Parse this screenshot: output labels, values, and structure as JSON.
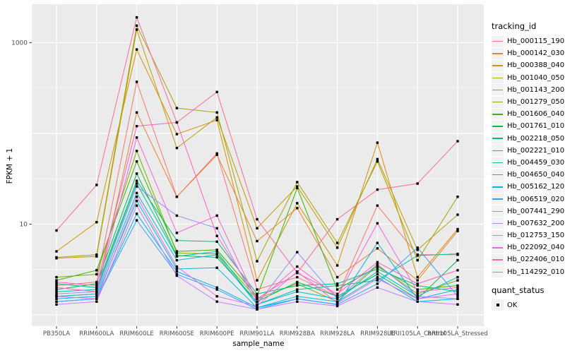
{
  "chart_data": {
    "type": "line",
    "title": "",
    "xlabel": "sample_name",
    "ylabel": "FPKM + 1",
    "x_categories": [
      "PB350LA",
      "RRIM600LA",
      "RRIM600LE",
      "RRIM600SE",
      "RRIM600PE",
      "RRIM901LA",
      "RRIM928BA",
      "RRIM928LA",
      "RRIM928LE",
      "RRII105LA_Control",
      "RRII105LA_Stressed"
    ],
    "y_scale": "log10",
    "y_domain": [
      0.75,
      2650
    ],
    "y_ticks": [
      {
        "value": 10,
        "label": "10"
      },
      {
        "value": 1000,
        "label": "1000"
      }
    ],
    "y_gridlines_major": [
      1,
      10,
      100,
      1000
    ],
    "y_gridlines_minor": [
      3.162,
      31.62,
      316.2
    ],
    "grid_on": true,
    "panel_bg": "#EBEBEB",
    "grid_color": "#FFFFFF",
    "axis_text_color": "#4D4D4D",
    "tick_color": "#333333",
    "point": {
      "color": "#000000",
      "shape": "square",
      "size": 3.4
    },
    "legend": {
      "position": "right",
      "tracking_title": "tracking_id",
      "quant_title": "quant_status",
      "quant_items": [
        {
          "label": "OK",
          "marker": "point",
          "color": "#000000"
        }
      ]
    },
    "series": [
      {
        "name": "Hb_000115_190",
        "color": "#F8766D",
        "values": [
          2.1,
          2.3,
          370,
          20,
          60,
          1.9,
          2.6,
          1.6,
          16,
          4.6,
          4.6
        ]
      },
      {
        "name": "Hb_000142_030",
        "color": "#EA8331",
        "values": [
          1.6,
          1.7,
          170,
          20,
          58,
          6.5,
          15,
          2.6,
          5.4,
          2.4,
          8.4
        ]
      },
      {
        "name": "Hb_000388_040",
        "color": "#D89000",
        "values": [
          5.0,
          10.5,
          840,
          98,
          140,
          2.4,
          17,
          3.5,
          79,
          2.6,
          8.8
        ]
      },
      {
        "name": "Hb_001040_050",
        "color": "#C09B00",
        "values": [
          4.2,
          4.4,
          1390,
          69,
          150,
          9.0,
          26,
          5.5,
          52,
          5.2,
          12.7
        ]
      },
      {
        "name": "Hb_001143_200",
        "color": "#A3A500",
        "values": [
          4.3,
          4.6,
          1540,
          190,
          170,
          3.9,
          29,
          6.2,
          49,
          4.0,
          20
        ]
      },
      {
        "name": "Hb_001279_050",
        "color": "#7CAE00",
        "values": [
          2.6,
          2.8,
          64,
          4.8,
          4.7,
          1.5,
          2.2,
          1.4,
          3.5,
          1.7,
          2.4
        ]
      },
      {
        "name": "Hb_001606_040",
        "color": "#39B600",
        "values": [
          2.4,
          3.1,
          49,
          5.0,
          5.2,
          1.6,
          25,
          1.9,
          3.4,
          1.9,
          2.1
        ]
      },
      {
        "name": "Hb_001761_010",
        "color": "#00BB4E",
        "values": [
          1.9,
          2.2,
          36,
          4.5,
          4.3,
          1.4,
          2.3,
          1.6,
          2.8,
          1.5,
          4.0
        ]
      },
      {
        "name": "Hb_002218_050",
        "color": "#00BF7D",
        "values": [
          2.2,
          2.0,
          30,
          6.6,
          6.4,
          1.7,
          2.1,
          2.2,
          3.2,
          2.1,
          1.8
        ]
      },
      {
        "name": "Hb_002221_010",
        "color": "#00C1A3",
        "values": [
          1.8,
          1.9,
          28,
          4.4,
          5.0,
          1.3,
          1.9,
          2.1,
          2.4,
          4.5,
          4.7
        ]
      },
      {
        "name": "Hb_004459_030",
        "color": "#00BFC4",
        "values": [
          1.6,
          1.7,
          22,
          4.0,
          4.6,
          1.3,
          1.8,
          1.5,
          3.0,
          1.6,
          2.6
        ]
      },
      {
        "name": "Hb_004650_040",
        "color": "#00BADE",
        "values": [
          1.5,
          1.6,
          18,
          3.2,
          3.3,
          1.2,
          1.6,
          1.4,
          2.6,
          1.4,
          1.5
        ]
      },
      {
        "name": "Hb_005162_120",
        "color": "#00B0F6",
        "values": [
          1.4,
          1.5,
          13,
          3.0,
          2.0,
          1.2,
          1.5,
          1.3,
          6.2,
          1.5,
          1.9
        ]
      },
      {
        "name": "Hb_006519_020",
        "color": "#35A2FF",
        "values": [
          1.4,
          1.5,
          11,
          2.8,
          1.9,
          1.15,
          1.5,
          1.3,
          2.2,
          5.5,
          1.6
        ]
      },
      {
        "name": "Hb_007441_290",
        "color": "#9590FF",
        "values": [
          1.7,
          1.8,
          26,
          12.4,
          9.0,
          1.3,
          4.9,
          1.5,
          3.6,
          1.6,
          1.5
        ]
      },
      {
        "name": "Hb_007632_200",
        "color": "#C77CFF",
        "values": [
          1.3,
          1.4,
          16,
          2.7,
          1.4,
          1.15,
          1.4,
          1.25,
          2.0,
          1.4,
          1.3
        ]
      },
      {
        "name": "Hb_012753_150",
        "color": "#E76BF3",
        "values": [
          1.6,
          1.5,
          20,
          3.4,
          1.6,
          1.25,
          3.0,
          1.35,
          2.5,
          1.5,
          1.7
        ]
      },
      {
        "name": "Hb_022092_040",
        "color": "#FA62DB",
        "values": [
          2.0,
          1.8,
          90,
          8.0,
          12.4,
          1.4,
          3.4,
          1.6,
          10.2,
          1.8,
          2.0
        ]
      },
      {
        "name": "Hb_022406_010",
        "color": "#FF62BC",
        "values": [
          2.3,
          2.1,
          120,
          132,
          7.4,
          1.5,
          2.9,
          1.7,
          3.8,
          2.2,
          3.1
        ]
      },
      {
        "name": "Hb_114292_010",
        "color": "#FF6A98",
        "values": [
          8.5,
          27,
          1900,
          132,
          286,
          11.3,
          2.9,
          11.3,
          24,
          28,
          82
        ]
      }
    ]
  }
}
